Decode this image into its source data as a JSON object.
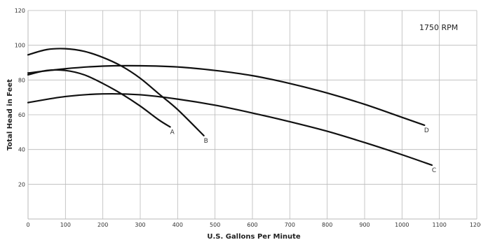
{
  "chart_data": {
    "type": "line",
    "title": "",
    "xlabel": "U.S. Gallons Per Minute",
    "ylabel": "Total Head in Feet",
    "annotation": "1750 RPM",
    "xlim": [
      0,
      1200
    ],
    "ylim": [
      0,
      120
    ],
    "x_ticks": [
      0,
      100,
      200,
      300,
      400,
      500,
      600,
      700,
      800,
      900,
      1000,
      1100,
      1200
    ],
    "x_tick_labels": [
      "0",
      "100",
      "200",
      "300",
      "400",
      "500",
      "600",
      "700",
      "800",
      "900",
      "1000",
      "1100",
      "1200"
    ],
    "y_ticks": [
      20,
      40,
      60,
      80,
      100,
      120
    ],
    "y_tick_labels": [
      "20",
      "40",
      "60",
      "80",
      "100",
      "120"
    ],
    "grid": true,
    "series": [
      {
        "name": "A",
        "x": [
          0,
          50,
          100,
          150,
          200,
          250,
          300,
          350,
          380
        ],
        "y": [
          83,
          85.5,
          85.5,
          83,
          78,
          72,
          65,
          57,
          53
        ]
      },
      {
        "name": "B",
        "x": [
          0,
          50,
          100,
          150,
          200,
          250,
          300,
          350,
          400,
          470
        ],
        "y": [
          94.5,
          97.5,
          98,
          96.5,
          93,
          88,
          81,
          72,
          63,
          48
        ]
      },
      {
        "name": "C",
        "x": [
          0,
          100,
          200,
          300,
          400,
          500,
          600,
          700,
          800,
          900,
          1000,
          1080
        ],
        "y": [
          67,
          70.5,
          72,
          71.5,
          69,
          65.5,
          61,
          56,
          50.5,
          44,
          37,
          31
        ]
      },
      {
        "name": "D",
        "x": [
          0,
          100,
          200,
          300,
          400,
          500,
          600,
          700,
          800,
          900,
          1000,
          1060
        ],
        "y": [
          84,
          86.5,
          88,
          88.2,
          87.5,
          85.5,
          82.5,
          78,
          72.5,
          66,
          58.5,
          54
        ]
      }
    ]
  }
}
